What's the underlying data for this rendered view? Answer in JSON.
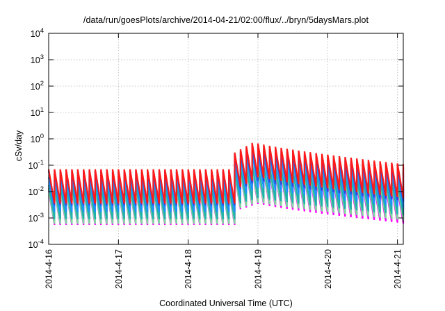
{
  "chart_data": {
    "type": "line",
    "title": "/data/run/goesPlots/archive/2014-04-21/02:00/flux/../bryn/5daysMars.plot",
    "xlabel": "Coordinated Universal Time (UTC)",
    "ylabel": "cSv/day",
    "yscale": "log",
    "ylim": [
      0.0001,
      10000
    ],
    "y_ticks": [
      {
        "base": "10",
        "exp": "-4",
        "value": 0.0001
      },
      {
        "base": "10",
        "exp": "-3",
        "value": 0.001
      },
      {
        "base": "10",
        "exp": "-2",
        "value": 0.01
      },
      {
        "base": "10",
        "exp": "-1",
        "value": 0.1
      },
      {
        "base": "10",
        "exp": "0",
        "value": 1
      },
      {
        "base": "10",
        "exp": "1",
        "value": 10
      },
      {
        "base": "10",
        "exp": "2",
        "value": 100
      },
      {
        "base": "10",
        "exp": "3",
        "value": 1000
      },
      {
        "base": "10",
        "exp": "4",
        "value": 10000
      }
    ],
    "x_tick_labels": [
      "2014-4-16",
      "2014-4-17",
      "2014-4-18",
      "2014-4-19",
      "2014-4-20",
      "2014-4-21"
    ],
    "xlim": [
      "2014-04-16 00:00",
      "2014-04-21 02:00"
    ],
    "grid": true,
    "sawtooth_period_hours": 2,
    "event_onset": "2014-04-18 14:30",
    "series": [
      {
        "color": "#ff1a1a",
        "pre_event_peak": 0.07,
        "pre_event_min": 0.0035,
        "event_peak": 0.75,
        "end_peak": 0.11
      },
      {
        "color": "#2a4ddb",
        "pre_event_peak": 0.06,
        "pre_event_min": 0.003,
        "event_peak": 0.55,
        "end_peak": 0.085
      },
      {
        "color": "#1e90ff",
        "pre_event_peak": 0.035,
        "pre_event_min": 0.0017,
        "event_peak": 0.3,
        "end_peak": 0.05
      },
      {
        "color": "#20b2aa",
        "pre_event_peak": 0.018,
        "pre_event_min": 0.0009,
        "event_peak": 0.12,
        "end_peak": 0.025
      },
      {
        "color": "#7cd9a0",
        "pre_event_peak": 0.012,
        "pre_event_min": 0.0006,
        "event_peak": 0.08,
        "end_peak": 0.016
      },
      {
        "color": "#cc22cc",
        "pre_event_peak": 0.014,
        "pre_event_min": 0.0007,
        "event_peak": 0.09,
        "end_peak": 0.015
      },
      {
        "color": "#ff00ff",
        "pre_event_peak": 0.011,
        "pre_event_min": 0.00055,
        "event_peak": 0.07,
        "end_peak": 0.012
      }
    ]
  }
}
